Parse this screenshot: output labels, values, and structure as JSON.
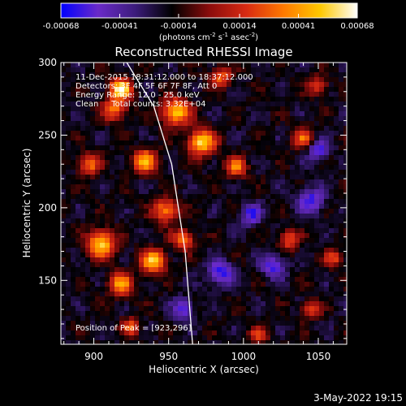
{
  "colorbar": {
    "ticks": [
      "-0.00068",
      "-0.00041",
      "-0.00014",
      "0.00014",
      "0.00041",
      "0.00068"
    ],
    "tick_values": [
      -0.00068,
      -0.00041,
      -0.00014,
      0.00014,
      0.00041,
      0.00068
    ],
    "range": [
      -0.00068,
      0.00068
    ],
    "units_base": "(photons cm",
    "units_exp1": "-2",
    "units_mid": " s",
    "units_exp2": "-1",
    "units_end": " asec",
    "units_exp3": "-2",
    "units_close": ")"
  },
  "chart_data": {
    "type": "heatmap",
    "title": "Reconstructed RHESSI Image",
    "xlabel": "Heliocentric X (arcsec)",
    "ylabel": "Heliocentric Y (arcsec)",
    "xlim": [
      878,
      1069
    ],
    "ylim": [
      106,
      300
    ],
    "x_ticks": [
      900,
      950,
      1000,
      1050
    ],
    "y_ticks": [
      150,
      200,
      250,
      300
    ],
    "info_lines": [
      "11-Dec-2015 18:31:12.000 to 18:37:12.000",
      "Detectors: 3F 4F 5F 6F 7F 8F, Att 0",
      "Energy Range: 12.0 - 25.0 keV",
      "Clean     Total counts: 3.32E+04"
    ],
    "peak_label": "Position of Peak = [923,296]",
    "peak": [
      923,
      296
    ],
    "limb_line": [
      [
        922,
        300
      ],
      [
        940,
        270
      ],
      [
        952,
        230
      ],
      [
        961,
        170
      ],
      [
        966,
        106
      ]
    ]
  },
  "footer": {
    "date": "3-May-2022 19:15"
  },
  "colors": {
    "background": "#000000",
    "colormap": [
      "#0000ff",
      "#6a2ac8",
      "#3c1c7c",
      "#000000",
      "#8a0c0c",
      "#d82a12",
      "#ff7800",
      "#ffc800",
      "#ffffff"
    ]
  }
}
